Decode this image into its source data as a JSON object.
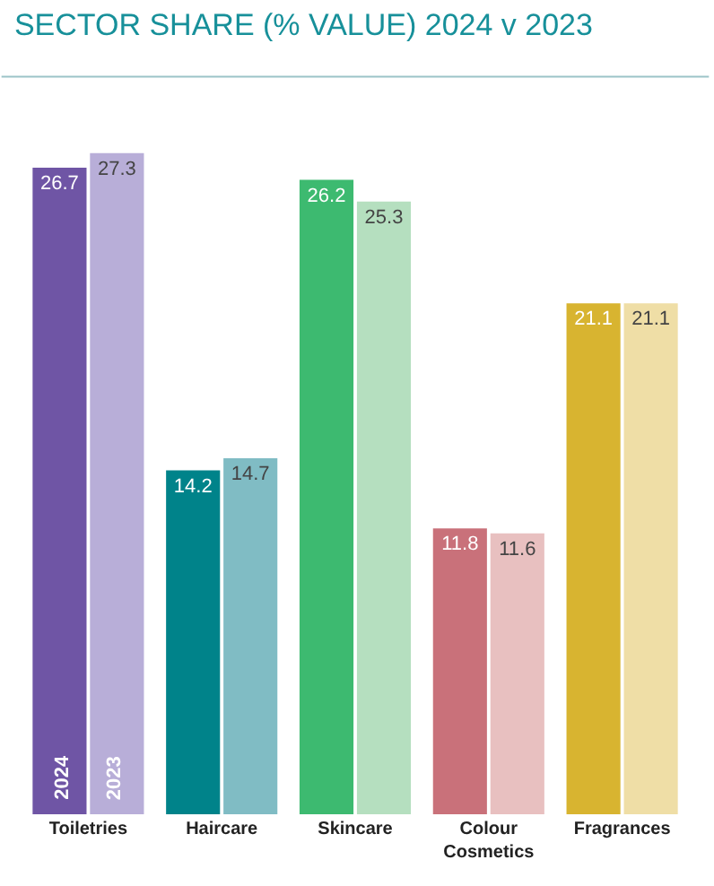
{
  "chart_data": {
    "type": "bar",
    "title": "SECTOR SHARE (% VALUE) 2024 v 2023",
    "categories": [
      "Toiletries",
      "Haircare",
      "Skincare",
      "Colour Cosmetics",
      "Fragrances"
    ],
    "series": [
      {
        "name": "2024",
        "values": [
          26.7,
          14.2,
          26.2,
          11.8,
          21.1
        ],
        "colors": [
          "#6f55a5",
          "#00838a",
          "#3dba70",
          "#c9717a",
          "#d8b430"
        ]
      },
      {
        "name": "2023",
        "values": [
          27.3,
          14.7,
          25.3,
          11.6,
          21.1
        ],
        "colors": [
          "#b8aed8",
          "#80bcc4",
          "#b5dfbf",
          "#e8c0c0",
          "#efdea6"
        ]
      }
    ],
    "data_labels": true,
    "legend": false,
    "grid": false,
    "tick_labels": "x"
  }
}
